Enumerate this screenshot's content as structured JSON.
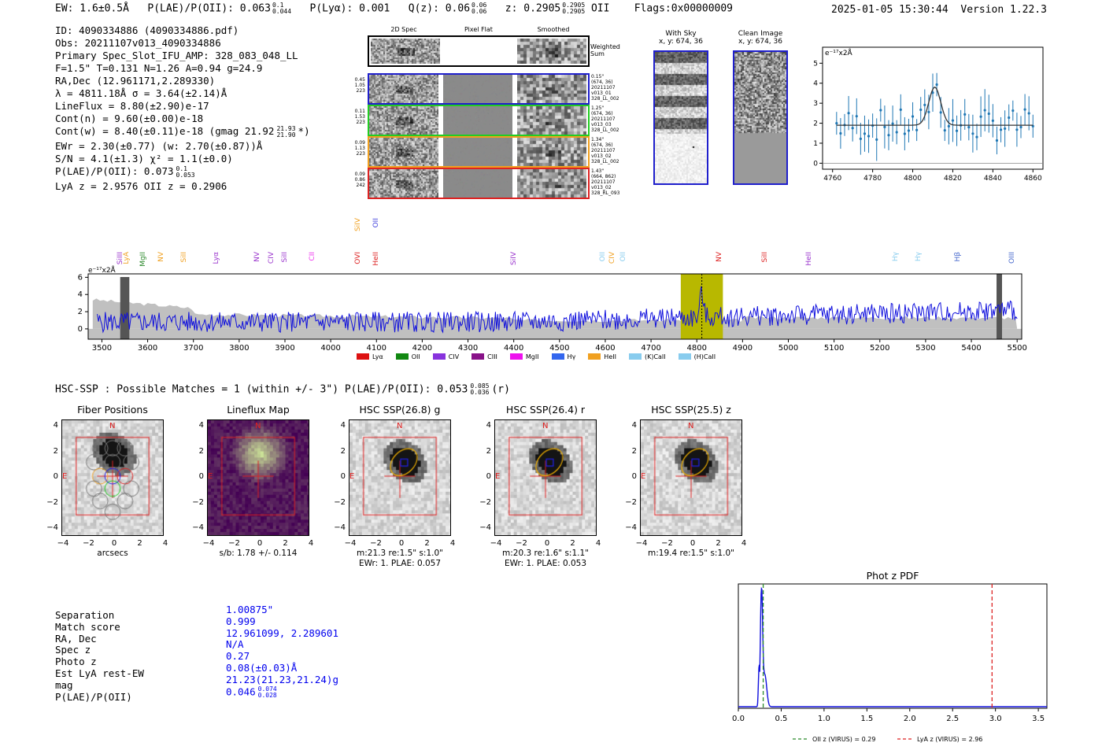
{
  "header": {
    "ew": "EW: 1.6±0.5Å",
    "plae_label": "P(LAE)/P(OII): 0.063",
    "plae_sup": "0.1",
    "plae_sub": "0.044",
    "plya": "P(Lyα): 0.001",
    "qz_label": "Q(z): 0.06",
    "qz_sup": "0.06",
    "qz_sub": "0.06",
    "z_label": "z: 0.2905",
    "z_sup": "0.2905",
    "z_sub": "0.2905",
    "z_line": "OII",
    "flags": "Flags:0x00000009",
    "timestamp": "2025-01-05 15:30:44",
    "version": "Version 1.22.3"
  },
  "info": {
    "id": "ID: 4090334886 (4090334886.pdf)",
    "obs": "Obs: 20211107v013_4090334886",
    "primary": "Primary Spec_Slot_IFU_AMP: 328_083_048_LL",
    "params": "F=1.5\"  T=0.131  N=1.26  A=0.94  g=24.9",
    "radec": "RA,Dec (12.961171,2.289330)",
    "lambda": "λ = 4811.18Å  σ = 3.64(±2.14)Å",
    "lineflux": "LineFlux = 8.80(±2.90)e-17",
    "contn": "Cont(n) = 9.60(±0.00)e-18",
    "contw": "Cont(w) = 8.40(±0.11)e-18 (gmag 21.92",
    "contw_sup": "21.93",
    "contw_sub": "21.90",
    "contw_end": "*)",
    "ewr": "EWr = 2.30(±0.77) (w: 2.70(±0.87))Å",
    "sn": "S/N = 4.1(±1.3)  χ² = 1.1(±0.0)",
    "plae": "P(LAE)/P(OII): 0.073",
    "plae_sup": "0.1",
    "plae_sub": "0.053",
    "lyaz": "LyA z = 2.9576  OII z = 0.2906"
  },
  "cutouts": {
    "col_titles": [
      "2D Spec",
      "Pixel Flat",
      "Smoothed"
    ],
    "weighted_sum": "Weighted Sum",
    "rows": [
      {
        "left": [
          "0.45",
          "1.05",
          "223"
        ],
        "right": [
          "0.15\"",
          "(674, 36)",
          "20211107",
          "v013_01",
          "328_LL_002"
        ],
        "color": "#1f1fcc"
      },
      {
        "left": [
          "0.11",
          "1.53",
          "223"
        ],
        "right": [
          "1.25\"",
          "(674, 36)",
          "20211107",
          "v013_03",
          "328_LL_002"
        ],
        "color": "#22cc22"
      },
      {
        "left": [
          "0.09",
          "1.13",
          "223"
        ],
        "right": [
          "1.34\"",
          "(674, 36)",
          "20211107",
          "v013_02",
          "328_LL_002"
        ],
        "color": "#f0a020"
      },
      {
        "left": [
          "0.09",
          "0.86",
          "242"
        ],
        "right": [
          "1.43\"",
          "(664, 862)",
          "20211107",
          "v013_02",
          "328_RL_093"
        ],
        "color": "#dd2222"
      }
    ],
    "with_sky_title": "With Sky",
    "with_sky_coords": "x, y: 674, 36",
    "clean_title": "Clean Image",
    "clean_coords": "x, y: 674, 36"
  },
  "fit_plot": {
    "ylabel": "e⁻¹⁷x2Å",
    "xticks": [
      "4760",
      "4780",
      "4800",
      "4820",
      "4840",
      "4860"
    ],
    "yticks": [
      "0",
      "1",
      "2",
      "3",
      "4",
      "5"
    ]
  },
  "spectrum": {
    "ylabel": "e⁻¹⁷x2Å",
    "xticks": [
      "3500",
      "3600",
      "3700",
      "3800",
      "3900",
      "4000",
      "4100",
      "4200",
      "4300",
      "4400",
      "4500",
      "4600",
      "4700",
      "4800",
      "4900",
      "5000",
      "5100",
      "5200",
      "5300",
      "5400",
      "5500"
    ],
    "yticks": [
      "0",
      "2",
      "4",
      "6"
    ],
    "line_markers": [
      {
        "label": "SiIII",
        "color": "#9933cc"
      },
      {
        "label": "LyA",
        "color": "#f0a020"
      },
      {
        "label": "MgII",
        "color": "#2e8b2e"
      },
      {
        "label": "NV",
        "color": "#f0a020"
      },
      {
        "label": "SiII",
        "color": "#f0a020"
      },
      {
        "label": "Lyα",
        "color": "#9933cc"
      },
      {
        "label": "NV",
        "color": "#9933cc"
      },
      {
        "label": "CIV",
        "color": "#9933cc"
      },
      {
        "label": "SiII",
        "color": "#9933cc"
      },
      {
        "label": "CII",
        "color": "#ee33ee"
      },
      {
        "label": "OVI",
        "color": "#dd2222"
      },
      {
        "label": "HeII",
        "color": "#dd2222"
      },
      {
        "label": "SiIV",
        "color": "#f0a020"
      },
      {
        "label": "OII",
        "color": "#4444dd"
      },
      {
        "label": "SiIV",
        "color": "#9933cc"
      },
      {
        "label": "OII",
        "color": "#88ccee"
      },
      {
        "label": "CIV",
        "color": "#f0a020"
      },
      {
        "label": "OII",
        "color": "#88ccee"
      },
      {
        "label": "NV",
        "color": "#dd2222"
      },
      {
        "label": "SiII",
        "color": "#dd2222"
      },
      {
        "label": "HeII",
        "color": "#9933cc"
      },
      {
        "label": "Hγ",
        "color": "#88ccee"
      },
      {
        "label": "Hγ",
        "color": "#88ccee"
      },
      {
        "label": "Hβ",
        "color": "#4466cc"
      },
      {
        "label": "OIII",
        "color": "#4466cc"
      }
    ],
    "legend": [
      {
        "label": "Lyα",
        "color": "#dd1111"
      },
      {
        "label": "OII",
        "color": "#118811"
      },
      {
        "label": "CIV",
        "color": "#8833dd"
      },
      {
        "label": "CIII",
        "color": "#881188"
      },
      {
        "label": "MgII",
        "color": "#ee11ee"
      },
      {
        "label": "Hγ",
        "color": "#3366ee"
      },
      {
        "label": "HeII",
        "color": "#f0a020"
      },
      {
        "label": "(K)CaII",
        "color": "#88ccee"
      },
      {
        "label": "(H)CaII",
        "color": "#88ccee"
      }
    ]
  },
  "hsc": {
    "matches_line": "HSC-SSP : Possible Matches = 1 (within +/- 3\")  P(LAE)/P(OII): 0.053",
    "matches_sup": "0.085",
    "matches_sub": "0.036",
    "matches_end": "(r)",
    "panels": [
      {
        "title": "Fiber Positions",
        "caption1": "arcsecs",
        "caption2": ""
      },
      {
        "title": "Lineflux Map",
        "caption1": "s/b: 1.78 +/- 0.114",
        "caption2": ""
      },
      {
        "title": "HSC SSP(26.8) g",
        "caption1": "m:21.3  re:1.5\"  s:1.0\"",
        "caption2": "EWr: 1. PLAE: 0.057"
      },
      {
        "title": "HSC SSP(26.4) r",
        "caption1": "m:20.3  re:1.6\"  s:1.1\"",
        "caption2": "EWr: 1. PLAE: 0.053"
      },
      {
        "title": "HSC SSP(25.5) z",
        "caption1": "m:19.4  re:1.5\"  s:1.0\"",
        "caption2": ""
      }
    ],
    "axis_ticks": [
      "4",
      "2",
      "0",
      "−2",
      "−4"
    ],
    "x_ticks": [
      "−4",
      "−2",
      "0",
      "2",
      "4"
    ],
    "compass_n": "N",
    "compass_e": "E"
  },
  "match_table": {
    "labels": [
      "Separation",
      "Match score",
      "RA, Dec",
      "Spec z",
      "Photo z",
      "Est LyA rest-EW",
      "mag",
      "P(LAE)/P(OII)"
    ],
    "values": [
      "1.00875\"",
      "0.999",
      "12.961099, 2.289601",
      "N/A",
      "0.27",
      "0.08(±0.03)Å",
      "21.23(21.23,21.24)g",
      "0.046"
    ],
    "plae_sup": "0.074",
    "plae_sub": "0.028"
  },
  "photz": {
    "title": "Phot z PDF",
    "xticks": [
      "0.0",
      "0.5",
      "1.0",
      "1.5",
      "2.0",
      "2.5",
      "3.0",
      "3.5"
    ],
    "legend_oii": "OII z (VIRUS) = 0.29",
    "legend_lya": "LyA z (VIRUS) = 2.96",
    "oii_z": 0.29,
    "lya_z": 2.96,
    "peak_z": 0.27
  }
}
